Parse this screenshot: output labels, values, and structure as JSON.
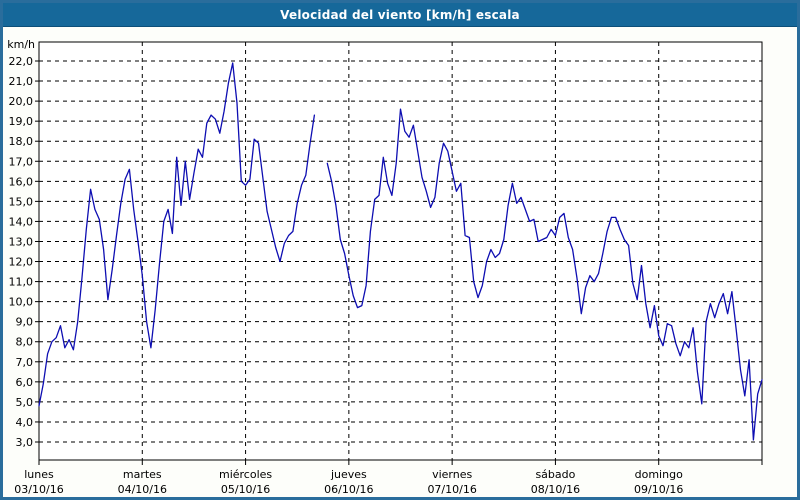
{
  "window": {
    "title": "Velocidad del viento [km/h] escala"
  },
  "chart_data": {
    "type": "line",
    "title": "Velocidad del viento [km/h] escala",
    "ylabel": "km/h",
    "unit": "km/h",
    "ylim": [
      3,
      22
    ],
    "y_tick_step": 1,
    "y_tick_labels": [
      "22,0",
      "21,0",
      "20,0",
      "19,0",
      "18,0",
      "17,0",
      "16,0",
      "15,0",
      "14,0",
      "13,0",
      "12,0",
      "11,0",
      "10,0",
      "9,0",
      "8,0",
      "7,0",
      "6,0",
      "5,0",
      "4,0",
      "3,0"
    ],
    "grid": "dashed-black",
    "legend": "none",
    "line_color": "#0e0eb2",
    "sampling": "hourly",
    "x_days": [
      {
        "name": "lunes",
        "date": "03/10/16"
      },
      {
        "name": "martes",
        "date": "04/10/16"
      },
      {
        "name": "miércoles",
        "date": "05/10/16"
      },
      {
        "name": "jueves",
        "date": "06/10/16"
      },
      {
        "name": "viernes",
        "date": "07/10/16"
      },
      {
        "name": "sábado",
        "date": "08/10/16"
      },
      {
        "name": "domingo",
        "date": "09/10/16"
      }
    ],
    "values": [
      4.8,
      5.9,
      7.4,
      8.0,
      8.2,
      8.8,
      7.7,
      8.1,
      7.6,
      9.0,
      11.2,
      13.6,
      15.6,
      14.6,
      14.1,
      12.6,
      10.1,
      11.6,
      13.3,
      14.9,
      16.1,
      16.6,
      14.6,
      13.0,
      11.3,
      9.0,
      7.7,
      9.6,
      11.9,
      14.0,
      14.6,
      13.4,
      17.2,
      14.8,
      17.0,
      15.1,
      16.4,
      17.6,
      17.2,
      18.9,
      19.3,
      19.1,
      18.4,
      19.5,
      20.9,
      21.9,
      19.9,
      16.0,
      15.8,
      16.1,
      18.1,
      17.9,
      16.2,
      14.5,
      13.6,
      12.7,
      12.0,
      12.9,
      13.3,
      13.5,
      14.9,
      15.8,
      16.3,
      17.9,
      19.3,
      null,
      null,
      16.9,
      16.0,
      14.8,
      13.1,
      12.4,
      11.3,
      10.3,
      9.7,
      9.8,
      10.8,
      13.5,
      15.1,
      15.3,
      17.2,
      15.9,
      15.3,
      16.9,
      19.6,
      18.5,
      18.2,
      18.8,
      17.5,
      16.2,
      15.5,
      14.7,
      15.2,
      16.9,
      17.9,
      17.5,
      16.5,
      15.5,
      15.9,
      13.3,
      13.2,
      11.0,
      10.2,
      10.8,
      12.0,
      12.6,
      12.2,
      12.4,
      13.1,
      14.8,
      15.9,
      14.9,
      15.2,
      14.6,
      14.0,
      14.1,
      13.0,
      13.1,
      13.2,
      13.6,
      13.3,
      14.2,
      14.4,
      13.2,
      12.6,
      11.2,
      9.4,
      10.7,
      11.3,
      11.0,
      11.4,
      12.4,
      13.5,
      14.2,
      14.2,
      13.6,
      13.1,
      12.8,
      10.9,
      10.1,
      11.8,
      9.9,
      8.7,
      9.8,
      8.3,
      7.8,
      8.9,
      8.8,
      7.9,
      7.3,
      8.0,
      7.7,
      8.7,
      6.5,
      4.9,
      9.0,
      9.9,
      9.2,
      9.9,
      10.4,
      9.4,
      10.5,
      8.6,
      6.6,
      5.3,
      7.1,
      3.1,
      5.4,
      6.1
    ]
  }
}
